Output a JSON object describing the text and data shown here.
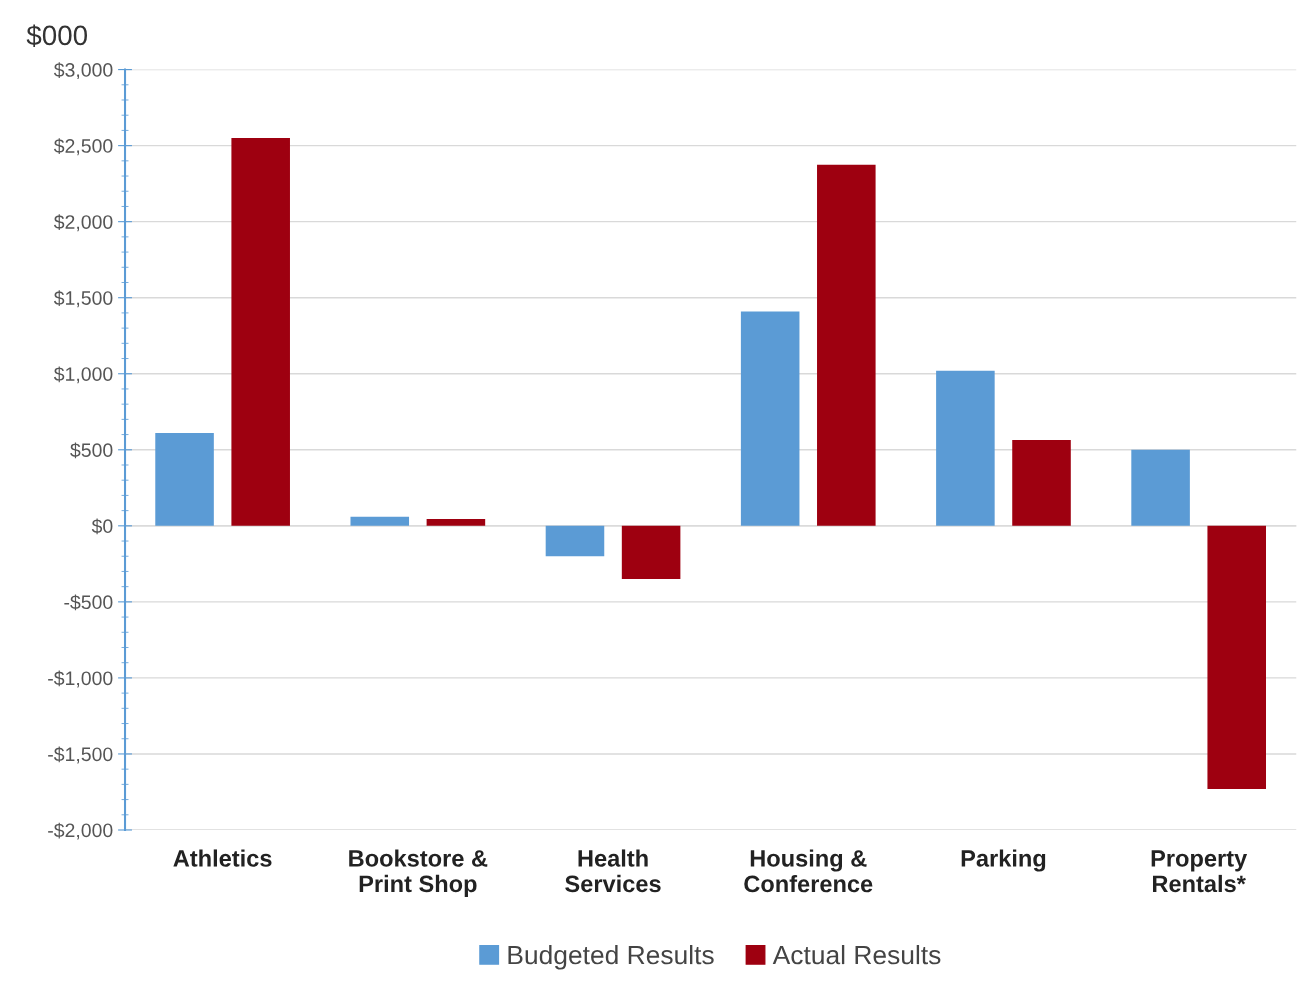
{
  "chart_data": {
    "type": "bar",
    "title": "$000",
    "categories": [
      "Athletics",
      "Bookstore &\nPrint Shop",
      "Health\nServices",
      "Housing &\nConference",
      "Parking",
      "Property\nRentals*"
    ],
    "series": [
      {
        "name": "Budgeted Results",
        "color": "#5b9bd5",
        "values": [
          610,
          60,
          -200,
          1410,
          1020,
          500
        ]
      },
      {
        "name": "Actual Results",
        "color": "#9e0010",
        "values": [
          2550,
          45,
          -350,
          2375,
          565,
          -1730
        ]
      }
    ],
    "ylim": [
      -2000,
      3000
    ],
    "yticks": [
      {
        "value": -2000,
        "label": "-$2,000"
      },
      {
        "value": -1500,
        "label": "-$1,500"
      },
      {
        "value": -1000,
        "label": "-$1,000"
      },
      {
        "value": -500,
        "label": "-$500"
      },
      {
        "value": 0,
        "label": "$0"
      },
      {
        "value": 500,
        "label": "$500"
      },
      {
        "value": 1000,
        "label": "$1,000"
      },
      {
        "value": 1500,
        "label": "$1,500"
      },
      {
        "value": 2000,
        "label": "$2,000"
      },
      {
        "value": 2500,
        "label": "$2,500"
      },
      {
        "value": 3000,
        "label": "$3,000"
      }
    ],
    "grid": "y",
    "legend": "bottom"
  }
}
